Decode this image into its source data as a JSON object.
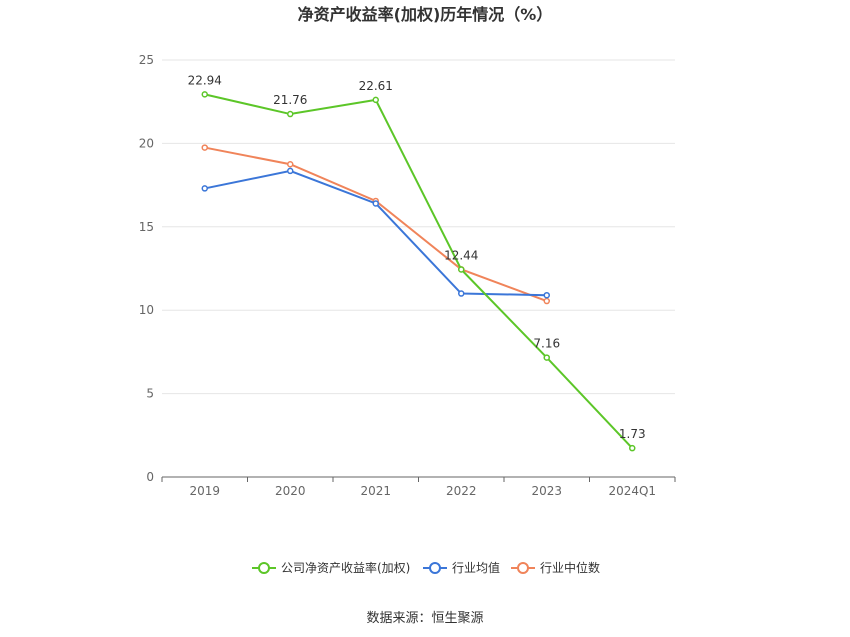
{
  "chart_data": {
    "type": "line",
    "title": "净资产收益率(加权)历年情况（%）",
    "categories": [
      "2019",
      "2020",
      "2021",
      "2022",
      "2023",
      "2024Q1"
    ],
    "ylim": [
      0,
      25
    ],
    "yticks": [
      0,
      5,
      10,
      15,
      20,
      25
    ],
    "grid": true,
    "legend_position": "bottom",
    "series": [
      {
        "name": "公司净资产收益率(加权)",
        "color": "#5cc628",
        "values": [
          22.94,
          21.76,
          22.61,
          12.44,
          7.16,
          1.73
        ],
        "labels": [
          "22.94",
          "21.76",
          "22.61",
          "12.44",
          "7.16",
          "1.73"
        ]
      },
      {
        "name": "行业均值",
        "color": "#3b76d8",
        "values": [
          17.3,
          18.35,
          16.4,
          11.0,
          10.9,
          null
        ]
      },
      {
        "name": "行业中位数",
        "color": "#f0845a",
        "values": [
          19.75,
          18.75,
          16.55,
          12.45,
          10.55,
          null
        ]
      }
    ]
  },
  "source": "数据来源：恒生聚源"
}
